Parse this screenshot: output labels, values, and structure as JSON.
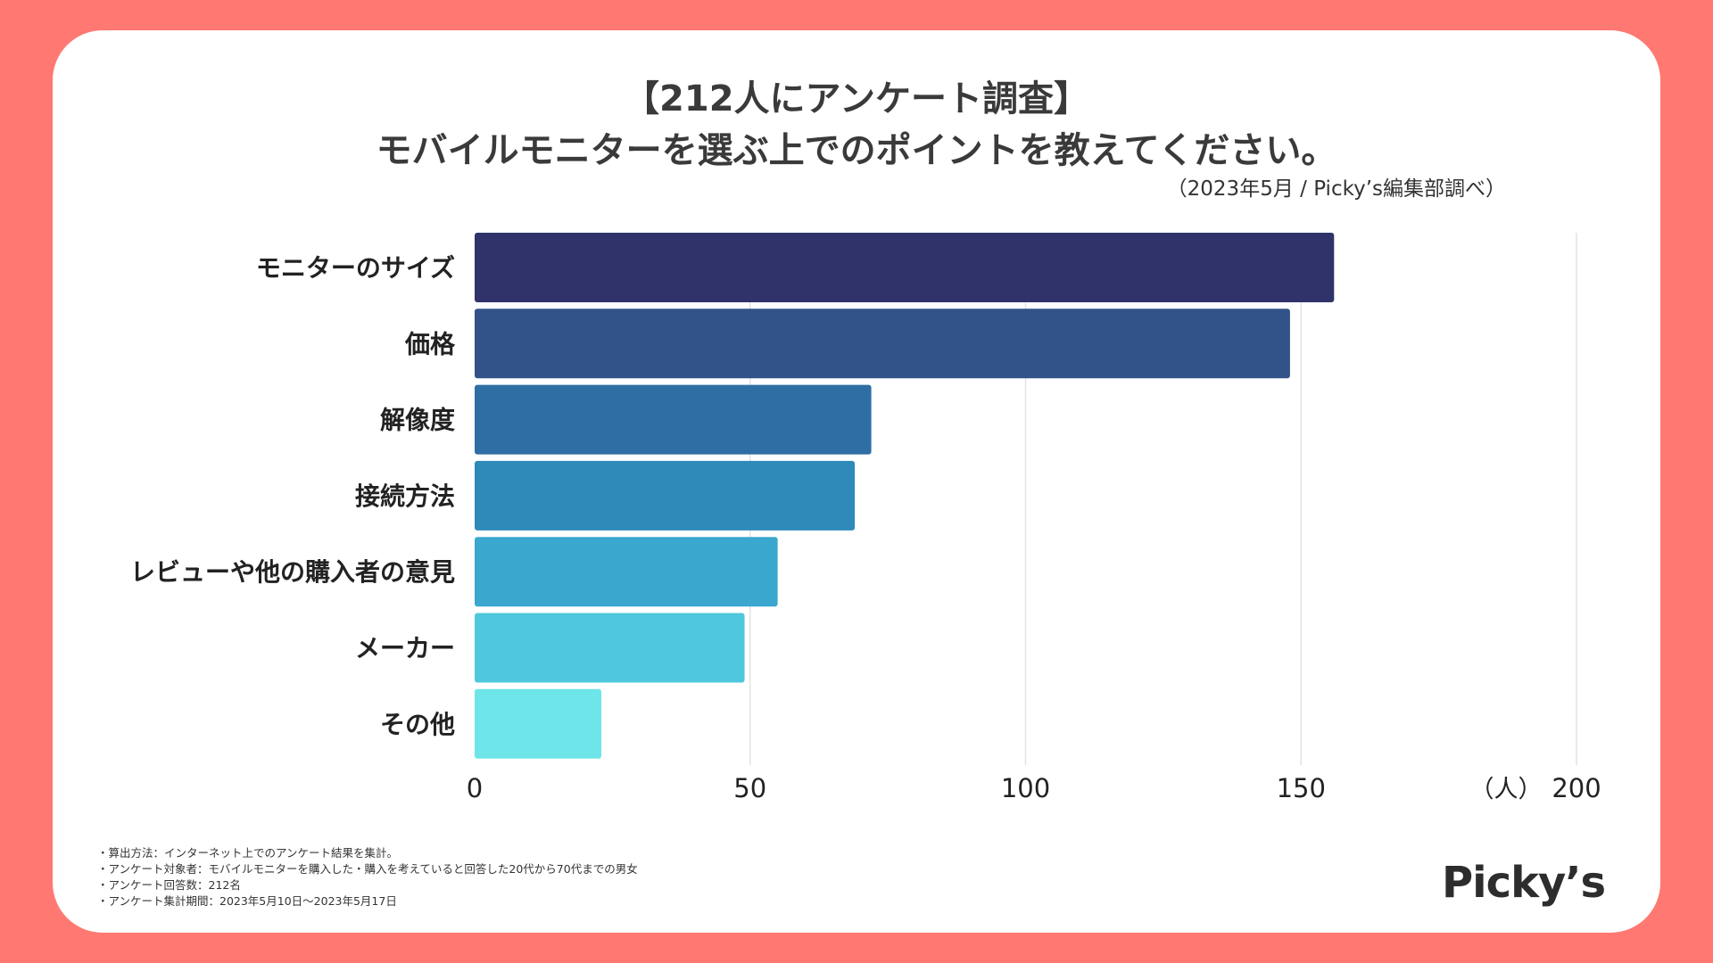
{
  "title_line1": "【212人にアンケート調査】",
  "title_line2": "モバイルモニターを選ぶ上でのポイントを教えてください。",
  "source": "（2023年5月 / Picky’s編集部調べ）",
  "chart_data": {
    "type": "bar",
    "orientation": "horizontal",
    "categories": [
      "モニターのサイズ",
      "価格",
      "解像度",
      "接続方法",
      "レビューや他の購入者の意見",
      "メーカー",
      "その他"
    ],
    "values": [
      156,
      148,
      72,
      69,
      55,
      49,
      23
    ],
    "xlim": [
      0,
      200
    ],
    "xticks": [
      "0",
      "50",
      "100",
      "150",
      "200"
    ],
    "unit_label": "（人）",
    "colors": [
      "#2f3369",
      "#32528a",
      "#2f6ea4",
      "#2e8ab9",
      "#3aa7ce",
      "#4fc8dd",
      "#6ee5e8"
    ],
    "grid": true
  },
  "notes": [
    "・算出方法：インターネット上でのアンケート結果を集計。",
    "・アンケート対象者：モバイルモニターを購入した・購入を考えていると回答した20代から70代までの男女",
    "・アンケート回答数：212名",
    "・アンケート集計期間：2023年5月10日〜2023年5月17日"
  ],
  "logo": "Picky’s"
}
